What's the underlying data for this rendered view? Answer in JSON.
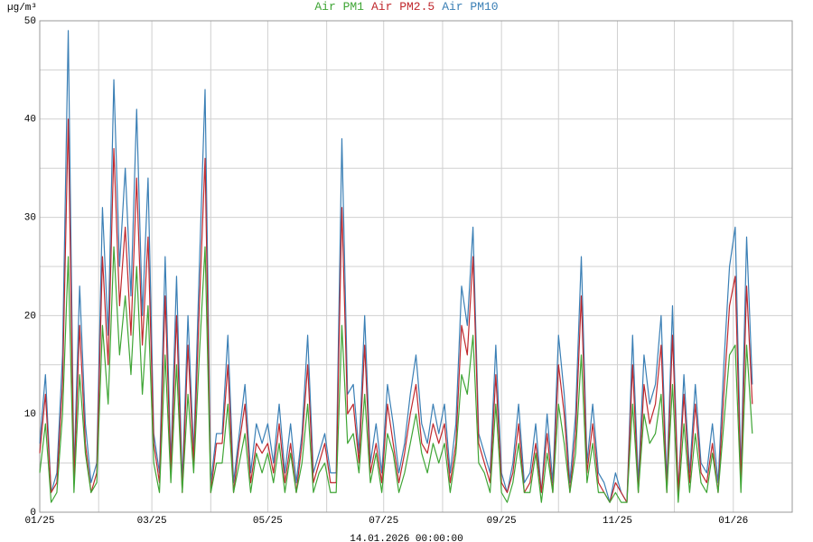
{
  "chart_data": {
    "type": "line",
    "y_axis_label": "µg/m³",
    "x_axis_label": "14.01.2026 00:00:00",
    "xlim": [
      0,
      396
    ],
    "xticks": [
      {
        "value": 0,
        "label": "01/25"
      },
      {
        "value": 59,
        "label": "03/25"
      },
      {
        "value": 120,
        "label": "05/25"
      },
      {
        "value": 181,
        "label": "07/25"
      },
      {
        "value": 243,
        "label": "09/25"
      },
      {
        "value": 304,
        "label": "11/25"
      },
      {
        "value": 365,
        "label": "01/26"
      }
    ],
    "x_minor_grid": [
      31,
      90,
      151,
      212,
      273,
      334
    ],
    "ylim": [
      0,
      50
    ],
    "yticks": [
      0,
      10,
      20,
      30,
      40,
      50
    ],
    "y_minor_grid": [
      5,
      15,
      25,
      35,
      45
    ],
    "grid": true,
    "x": [
      0,
      3,
      6,
      9,
      12,
      15,
      18,
      21,
      24,
      27,
      30,
      33,
      36,
      39,
      42,
      45,
      48,
      51,
      54,
      57,
      60,
      63,
      66,
      69,
      72,
      75,
      78,
      81,
      84,
      87,
      90,
      93,
      96,
      99,
      102,
      105,
      108,
      111,
      114,
      117,
      120,
      123,
      126,
      129,
      132,
      135,
      138,
      141,
      144,
      147,
      150,
      153,
      156,
      159,
      162,
      165,
      168,
      171,
      174,
      177,
      180,
      183,
      186,
      189,
      192,
      195,
      198,
      201,
      204,
      207,
      210,
      213,
      216,
      219,
      222,
      225,
      228,
      231,
      234,
      237,
      240,
      243,
      246,
      249,
      252,
      255,
      258,
      261,
      264,
      267,
      270,
      273,
      276,
      279,
      282,
      285,
      288,
      291,
      294,
      297,
      300,
      303,
      306,
      309,
      312,
      315,
      318,
      321,
      324,
      327,
      330,
      333,
      336,
      339,
      342,
      345,
      348,
      351,
      354,
      357,
      360,
      363,
      366,
      369,
      372,
      375
    ],
    "series": [
      {
        "name": "Air PM1",
        "color": "#3fa535",
        "values": [
          4,
          9,
          1,
          2,
          10,
          26,
          2,
          14,
          6,
          2,
          3,
          19,
          11,
          27,
          16,
          22,
          14,
          25,
          12,
          21,
          5,
          2,
          16,
          3,
          15,
          2,
          12,
          4,
          16,
          27,
          2,
          5,
          5,
          11,
          2,
          5,
          8,
          2,
          6,
          4,
          6,
          3,
          7,
          2,
          6,
          2,
          5,
          11,
          2,
          4,
          5,
          2,
          2,
          19,
          7,
          8,
          4,
          12,
          3,
          6,
          2,
          8,
          6,
          2,
          4,
          7,
          10,
          6,
          4,
          7,
          5,
          7,
          2,
          6,
          14,
          12,
          18,
          5,
          4,
          2,
          11,
          2,
          1,
          3,
          7,
          2,
          2,
          6,
          1,
          6,
          2,
          11,
          7,
          2,
          6,
          16,
          3,
          7,
          2,
          2,
          1,
          2,
          1,
          1,
          11,
          2,
          10,
          7,
          8,
          12,
          2,
          13,
          1,
          9,
          2,
          8,
          3,
          2,
          6,
          2,
          9,
          16,
          17,
          2,
          17,
          8
        ]
      },
      {
        "name": "Air PM2.5",
        "color": "#c0282d",
        "values": [
          6,
          12,
          2,
          3,
          13,
          40,
          3,
          19,
          7,
          2,
          4,
          26,
          15,
          37,
          21,
          29,
          18,
          34,
          17,
          28,
          7,
          3,
          22,
          4,
          20,
          2,
          17,
          5,
          21,
          36,
          2,
          7,
          7,
          15,
          2,
          7,
          11,
          3,
          7,
          6,
          7,
          4,
          9,
          3,
          7,
          2,
          7,
          15,
          3,
          5,
          7,
          3,
          3,
          31,
          10,
          11,
          5,
          17,
          4,
          7,
          3,
          11,
          7,
          3,
          6,
          10,
          13,
          7,
          6,
          9,
          7,
          9,
          3,
          7,
          19,
          16,
          26,
          7,
          5,
          3,
          14,
          3,
          2,
          4,
          9,
          2,
          3,
          7,
          2,
          8,
          2,
          15,
          10,
          2,
          8,
          22,
          4,
          9,
          3,
          2,
          1,
          3,
          2,
          1,
          15,
          2,
          13,
          9,
          11,
          17,
          2,
          18,
          2,
          12,
          3,
          11,
          4,
          3,
          7,
          2,
          12,
          21,
          24,
          3,
          23,
          11
        ]
      },
      {
        "name": "Air PM10",
        "color": "#3a7fb5",
        "values": [
          7,
          14,
          2,
          4,
          16,
          49,
          4,
          23,
          9,
          3,
          5,
          31,
          18,
          44,
          25,
          35,
          22,
          41,
          20,
          34,
          8,
          4,
          26,
          5,
          24,
          3,
          20,
          6,
          25,
          43,
          3,
          8,
          8,
          18,
          3,
          8,
          13,
          4,
          9,
          7,
          9,
          5,
          11,
          4,
          9,
          3,
          8,
          18,
          4,
          6,
          8,
          4,
          4,
          38,
          12,
          13,
          6,
          20,
          5,
          9,
          4,
          13,
          9,
          4,
          7,
          12,
          16,
          9,
          7,
          11,
          8,
          11,
          4,
          9,
          23,
          19,
          29,
          8,
          6,
          4,
          17,
          4,
          2,
          5,
          11,
          3,
          4,
          9,
          2,
          10,
          3,
          18,
          12,
          3,
          10,
          26,
          5,
          11,
          4,
          3,
          1,
          4,
          2,
          1,
          18,
          3,
          16,
          11,
          13,
          20,
          3,
          21,
          2,
          14,
          4,
          13,
          5,
          4,
          9,
          3,
          15,
          25,
          29,
          4,
          28,
          13
        ]
      }
    ]
  }
}
